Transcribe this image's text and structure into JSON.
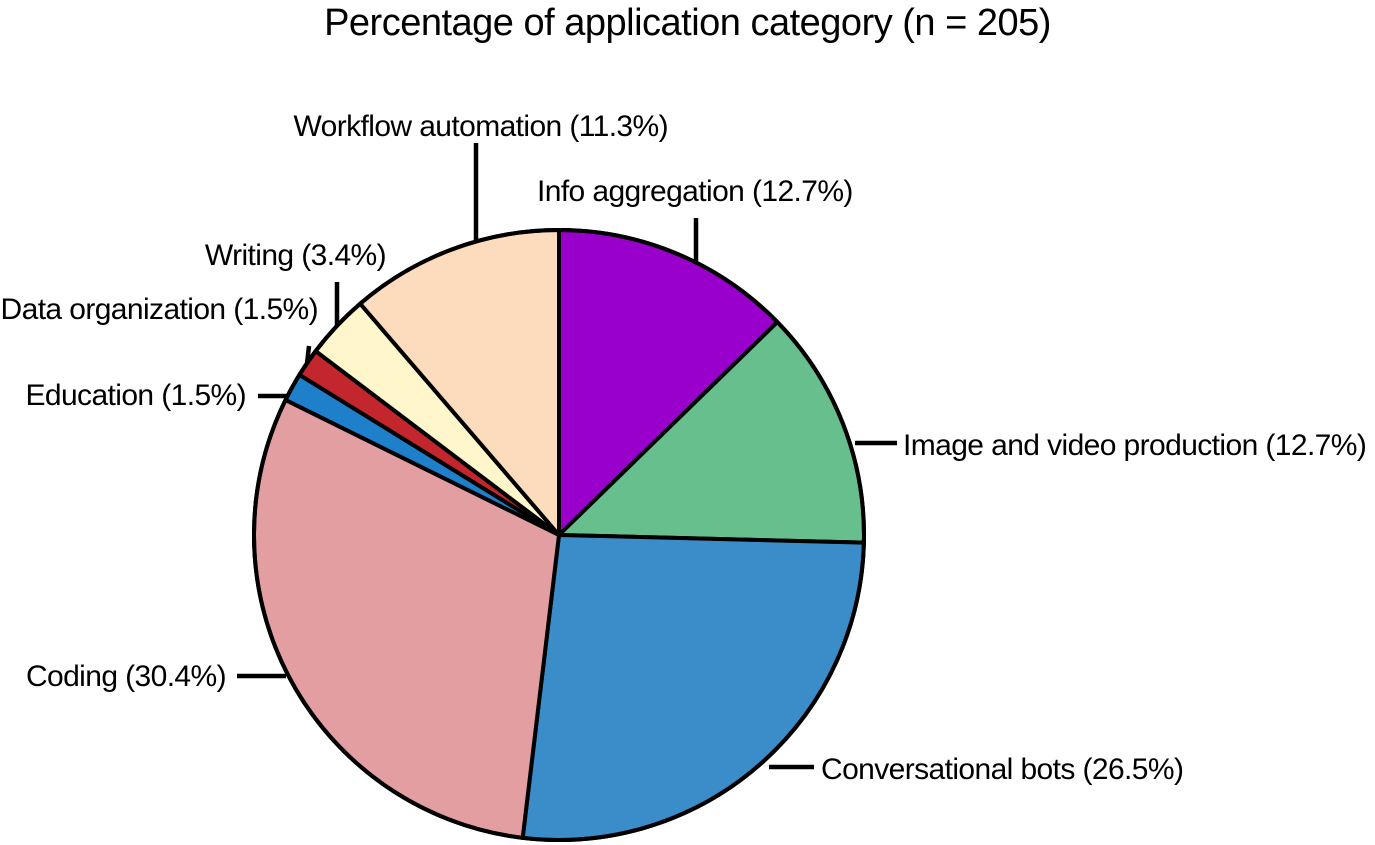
{
  "chart_data": {
    "type": "pie",
    "title": "Percentage of application category (n = 205)",
    "start": "12 o'clock",
    "direction": "clockwise",
    "slices": [
      {
        "label": "Info aggregation (12.7%)",
        "value": 12.7,
        "color": "#9900CC"
      },
      {
        "label": "Image and video production (12.7%)",
        "value": 12.7,
        "color": "#66BF8D"
      },
      {
        "label": "Conversational bots (26.5%)",
        "value": 26.5,
        "color": "#3A8DC9"
      },
      {
        "label": "Coding (30.4%)",
        "value": 30.4,
        "color": "#E29EA0"
      },
      {
        "label": "Education (1.5%)",
        "value": 1.5,
        "color": "#1E7FCB"
      },
      {
        "label": "Data organization (1.5%)",
        "value": 1.5,
        "color": "#C3262D"
      },
      {
        "label": "Writing (3.4%)",
        "value": 3.4,
        "color": "#FFF6CC"
      },
      {
        "label": "Workflow automation (11.3%)",
        "value": 11.3,
        "color": "#FCDCBD"
      }
    ]
  }
}
